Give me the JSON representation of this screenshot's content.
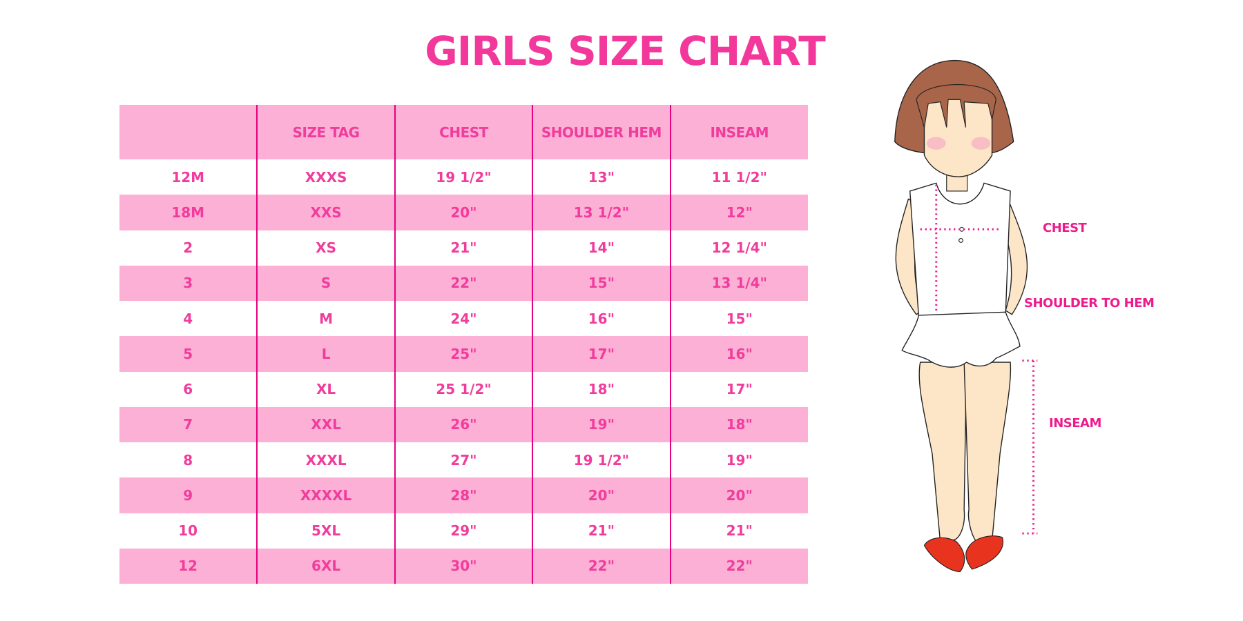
{
  "title": "GIRLS SIZE CHART",
  "table": {
    "headers": [
      "",
      "SIZE TAG",
      "CHEST",
      "SHOULDER HEM",
      "INSEAM"
    ],
    "rows": [
      [
        "12M",
        "XXXS",
        "19 1/2\"",
        "13\"",
        "11 1/2\""
      ],
      [
        "18M",
        "XXS",
        "20\"",
        "13 1/2\"",
        "12\""
      ],
      [
        "2",
        "XS",
        "21\"",
        "14\"",
        "12 1/4\""
      ],
      [
        "3",
        "S",
        "22\"",
        "15\"",
        "13 1/4\""
      ],
      [
        "4",
        "M",
        "24\"",
        "16\"",
        "15\""
      ],
      [
        "5",
        "L",
        "25\"",
        "17\"",
        "16\""
      ],
      [
        "6",
        "XL",
        "25 1/2\"",
        "18\"",
        "17\""
      ],
      [
        "7",
        "XXL",
        "26\"",
        "19\"",
        "18\""
      ],
      [
        "8",
        "XXXL",
        "27\"",
        "19 1/2\"",
        "19\""
      ],
      [
        "9",
        "XXXXL",
        "28\"",
        "20\"",
        "20\""
      ],
      [
        "10",
        "5XL",
        "29\"",
        "21\"",
        "21\""
      ],
      [
        "12",
        "6XL",
        "30\"",
        "22\"",
        "22\""
      ]
    ]
  },
  "figure": {
    "labels": {
      "chest": "CHEST",
      "shoulder_to_hem": "SHOULDER TO HEM",
      "inseam": "INSEAM"
    }
  },
  "colors": {
    "accent": "#f2399b",
    "row_pink": "#fcb0d5",
    "divider": "#e5007d",
    "hair": "#a8654a",
    "skin": "#fde6c8",
    "shoes": "#e8331f"
  }
}
